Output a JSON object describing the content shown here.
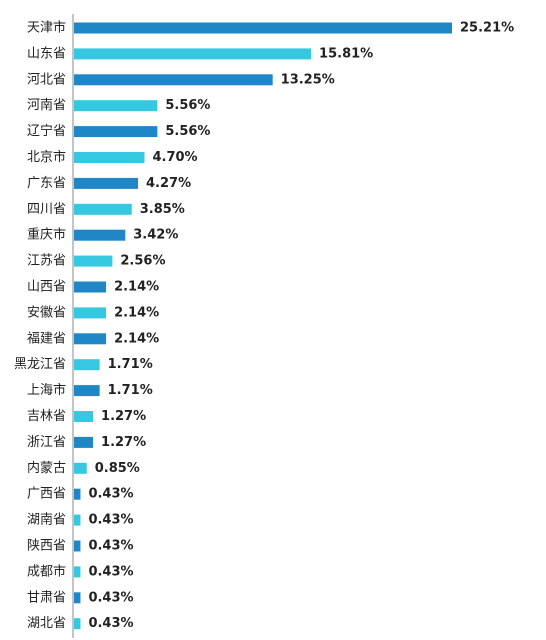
{
  "chart_data": {
    "type": "bar",
    "orientation": "horizontal",
    "categories": [
      "天津市",
      "山东省",
      "河北省",
      "河南省",
      "辽宁省",
      "北京市",
      "广东省",
      "四川省",
      "重庆市",
      "江苏省",
      "山西省",
      "安徽省",
      "福建省",
      "黑龙江省",
      "上海市",
      "吉林省",
      "浙江省",
      "内蒙古",
      "广西省",
      "湖南省",
      "陕西省",
      "成都市",
      "甘肃省",
      "湖北省"
    ],
    "values": [
      25.21,
      15.81,
      13.25,
      5.56,
      5.56,
      4.7,
      4.27,
      3.85,
      3.42,
      2.56,
      2.14,
      2.14,
      2.14,
      1.71,
      1.71,
      1.27,
      1.27,
      0.85,
      0.43,
      0.43,
      0.43,
      0.43,
      0.43,
      0.43
    ],
    "value_labels": [
      "25.21%",
      "15.81%",
      "13.25%",
      "5.56%",
      "5.56%",
      "4.70%",
      "4.27%",
      "3.85%",
      "3.42%",
      "2.56%",
      "2.14%",
      "2.14%",
      "2.14%",
      "1.71%",
      "1.71%",
      "1.27%",
      "1.27%",
      "0.85%",
      "0.43%",
      "0.43%",
      "0.43%",
      "0.43%",
      "0.43%",
      "0.43%"
    ],
    "colors": [
      "#1f87c6",
      "#35c8e0"
    ],
    "color_pattern": "alternating",
    "xlim": [
      0,
      25.21
    ],
    "grid": false,
    "axis_line_color": "#888888",
    "title": "",
    "xlabel": "",
    "ylabel": ""
  }
}
